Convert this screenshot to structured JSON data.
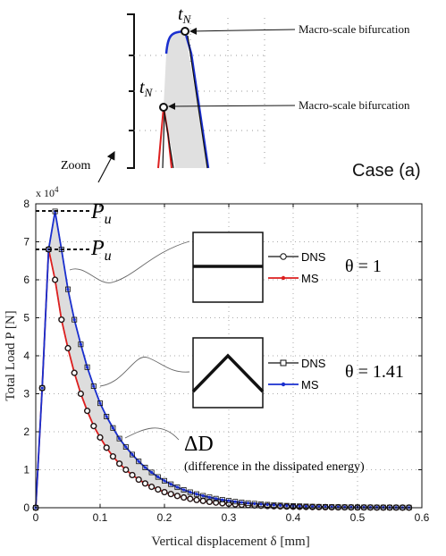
{
  "figure": {
    "case_label": "Case (a)",
    "zoom_label": "Zoom",
    "bifurcation_label": "Macro-scale bifurcation",
    "tN_label": "t",
    "tN_sub": "N",
    "Pu_label": "P",
    "Pu_sub": "u",
    "delta_D_label": "ΔD",
    "delta_D_note": "(difference in the dissipated energy)",
    "exponent_label": "x 10",
    "exponent_power": "4",
    "theta1_label": "θ = 1",
    "theta2_label": "θ = 1.41",
    "legend": [
      "DNS",
      "MS"
    ],
    "colors": {
      "dns": "#111111",
      "ms_flat": "#dd1f1f",
      "dns_v": "#1a2fcf",
      "ms_v": "#1a2fcf",
      "fill": "#dddddd"
    }
  },
  "chart_data": {
    "type": "line",
    "xlabel": "Vertical displacement  δ  [mm]",
    "ylabel": "Total Load  P  [N]",
    "xlim": [
      0,
      0.6
    ],
    "ylim": [
      0,
      8
    ],
    "y_multiplier": "x 10^4",
    "xticks": [
      "0",
      "0.1",
      "0.2",
      "0.3",
      "0.4",
      "0.5",
      "0.6"
    ],
    "yticks": [
      "0",
      "1",
      "2",
      "3",
      "4",
      "5",
      "6",
      "7",
      "8"
    ],
    "grid": "dotted",
    "series": [
      {
        "name": "DNS",
        "group": "θ = 1",
        "x": [
          0,
          0.01,
          0.02,
          0.03,
          0.04,
          0.05,
          0.06,
          0.07,
          0.08,
          0.09,
          0.1,
          0.11,
          0.12,
          0.13,
          0.14,
          0.15,
          0.16,
          0.17,
          0.18,
          0.19,
          0.2,
          0.21,
          0.22,
          0.23,
          0.24,
          0.25,
          0.26,
          0.27,
          0.28,
          0.29,
          0.3,
          0.31,
          0.32,
          0.33,
          0.34,
          0.35,
          0.36,
          0.37,
          0.38,
          0.39,
          0.4,
          0.41,
          0.42,
          0.43,
          0.44,
          0.45,
          0.46,
          0.47,
          0.48,
          0.49,
          0.5,
          0.51,
          0.52,
          0.53,
          0.54,
          0.55,
          0.56,
          0.57,
          0.58
        ],
        "y": [
          0,
          3.15,
          6.8,
          6.0,
          4.95,
          4.2,
          3.55,
          3.0,
          2.55,
          2.15,
          1.85,
          1.58,
          1.35,
          1.16,
          1.0,
          0.86,
          0.74,
          0.64,
          0.55,
          0.48,
          0.41,
          0.36,
          0.31,
          0.27,
          0.235,
          0.205,
          0.18,
          0.155,
          0.135,
          0.118,
          0.103,
          0.09,
          0.079,
          0.069,
          0.06,
          0.053,
          0.046,
          0.04,
          0.035,
          0.031,
          0.027,
          0.024,
          0.021,
          0.018,
          0.016,
          0.014,
          0.012,
          0.011,
          0.01,
          0.009,
          0.008,
          0.007,
          0.006,
          0.005,
          0.005,
          0.004,
          0.004,
          0.003,
          0.003
        ]
      },
      {
        "name": "MS",
        "group": "θ = 1",
        "x": [
          0,
          0.01,
          0.02,
          0.03,
          0.04,
          0.05,
          0.06,
          0.07,
          0.08,
          0.09,
          0.1,
          0.11,
          0.12,
          0.13,
          0.14,
          0.15,
          0.16,
          0.17,
          0.18,
          0.19,
          0.2,
          0.21,
          0.22,
          0.23,
          0.24,
          0.25,
          0.26,
          0.27,
          0.28,
          0.29,
          0.3,
          0.31,
          0.32,
          0.33,
          0.34,
          0.35,
          0.36,
          0.37,
          0.38,
          0.39,
          0.4,
          0.41,
          0.42,
          0.43,
          0.44,
          0.45,
          0.46,
          0.47,
          0.48,
          0.49,
          0.5,
          0.51,
          0.52,
          0.53,
          0.54,
          0.55,
          0.56,
          0.57,
          0.58
        ],
        "y": [
          0,
          3.15,
          6.8,
          6.0,
          4.95,
          4.2,
          3.55,
          3.0,
          2.55,
          2.15,
          1.85,
          1.58,
          1.35,
          1.16,
          1.0,
          0.86,
          0.74,
          0.64,
          0.55,
          0.48,
          0.41,
          0.36,
          0.31,
          0.27,
          0.235,
          0.205,
          0.18,
          0.155,
          0.135,
          0.118,
          0.103,
          0.09,
          0.079,
          0.069,
          0.06,
          0.053,
          0.046,
          0.04,
          0.035,
          0.031,
          0.027,
          0.024,
          0.021,
          0.018,
          0.016,
          0.014,
          0.012,
          0.011,
          0.01,
          0.009,
          0.008,
          0.007,
          0.006,
          0.005,
          0.005,
          0.004,
          0.004,
          0.003,
          0.003
        ]
      },
      {
        "name": "DNS",
        "group": "θ = 1.41",
        "x": [
          0,
          0.01,
          0.02,
          0.03,
          0.04,
          0.05,
          0.06,
          0.07,
          0.08,
          0.09,
          0.1,
          0.11,
          0.12,
          0.13,
          0.14,
          0.15,
          0.16,
          0.17,
          0.18,
          0.19,
          0.2,
          0.21,
          0.22,
          0.23,
          0.24,
          0.25,
          0.26,
          0.27,
          0.28,
          0.29,
          0.3,
          0.31,
          0.32,
          0.33,
          0.34,
          0.35,
          0.36,
          0.37,
          0.38,
          0.39,
          0.4,
          0.41,
          0.42,
          0.43,
          0.44,
          0.45,
          0.46,
          0.47,
          0.48,
          0.49,
          0.5,
          0.51,
          0.52,
          0.53,
          0.54,
          0.55,
          0.56,
          0.57,
          0.58
        ],
        "y": [
          0,
          3.15,
          6.8,
          7.8,
          6.8,
          5.75,
          4.95,
          4.3,
          3.7,
          3.2,
          2.75,
          2.4,
          2.1,
          1.82,
          1.6,
          1.4,
          1.22,
          1.06,
          0.93,
          0.81,
          0.71,
          0.62,
          0.54,
          0.47,
          0.41,
          0.36,
          0.315,
          0.275,
          0.24,
          0.21,
          0.185,
          0.16,
          0.14,
          0.122,
          0.107,
          0.093,
          0.081,
          0.071,
          0.062,
          0.054,
          0.047,
          0.041,
          0.036,
          0.031,
          0.027,
          0.024,
          0.021,
          0.018,
          0.016,
          0.014,
          0.012,
          0.011,
          0.01,
          0.009,
          0.008,
          0.007,
          0.006,
          0.005,
          0.005
        ]
      },
      {
        "name": "MS",
        "group": "θ = 1.41",
        "x": [
          0,
          0.01,
          0.02,
          0.03,
          0.04,
          0.05,
          0.06,
          0.07,
          0.08,
          0.09,
          0.1,
          0.11,
          0.12,
          0.13,
          0.14,
          0.15,
          0.16,
          0.17,
          0.18,
          0.19,
          0.2,
          0.21,
          0.22,
          0.23,
          0.24,
          0.25,
          0.26,
          0.27,
          0.28,
          0.29,
          0.3,
          0.31,
          0.32,
          0.33,
          0.34,
          0.35,
          0.36,
          0.37,
          0.38,
          0.39,
          0.4,
          0.41,
          0.42,
          0.43,
          0.44,
          0.45,
          0.46,
          0.47,
          0.48,
          0.49,
          0.5,
          0.51,
          0.52,
          0.53,
          0.54,
          0.55,
          0.56,
          0.57,
          0.58
        ],
        "y": [
          0,
          3.15,
          6.8,
          7.8,
          6.8,
          5.75,
          4.95,
          4.3,
          3.7,
          3.2,
          2.75,
          2.4,
          2.1,
          1.82,
          1.6,
          1.4,
          1.22,
          1.06,
          0.93,
          0.81,
          0.71,
          0.62,
          0.54,
          0.47,
          0.41,
          0.36,
          0.315,
          0.275,
          0.24,
          0.21,
          0.185,
          0.16,
          0.14,
          0.122,
          0.107,
          0.093,
          0.081,
          0.071,
          0.062,
          0.054,
          0.047,
          0.041,
          0.036,
          0.031,
          0.027,
          0.024,
          0.021,
          0.018,
          0.016,
          0.014,
          0.012,
          0.011,
          0.01,
          0.009,
          0.008,
          0.007,
          0.006,
          0.005,
          0.005
        ]
      }
    ],
    "annotations": [
      "P_u",
      "P_u",
      "ΔD",
      "(difference in the dissipated energy)",
      "θ = 1",
      "θ = 1.41",
      "Macro-scale bifurcation",
      "t_N",
      "Zoom",
      "Case (a)"
    ]
  }
}
